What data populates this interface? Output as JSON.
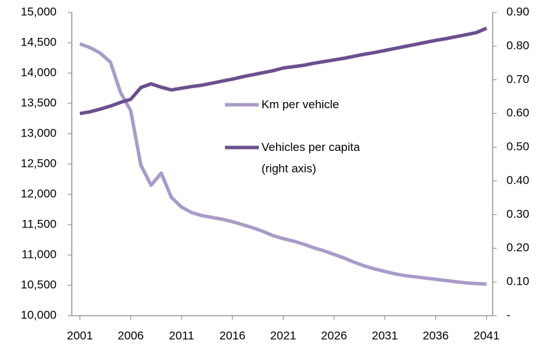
{
  "chart_data": {
    "type": "line",
    "x": [
      2001,
      2002,
      2003,
      2004,
      2005,
      2006,
      2007,
      2008,
      2009,
      2010,
      2011,
      2012,
      2013,
      2014,
      2015,
      2016,
      2017,
      2018,
      2019,
      2020,
      2021,
      2022,
      2023,
      2024,
      2025,
      2026,
      2027,
      2028,
      2029,
      2030,
      2031,
      2032,
      2033,
      2034,
      2035,
      2036,
      2037,
      2038,
      2039,
      2040,
      2041
    ],
    "series": [
      {
        "name": "Km per vehicle",
        "color": "#a99bc8",
        "values": [
          14480,
          14420,
          14330,
          14180,
          13680,
          13380,
          12480,
          12150,
          12350,
          11950,
          11790,
          11700,
          11650,
          11620,
          11590,
          11550,
          11500,
          11450,
          11390,
          11320,
          11270,
          11230,
          11180,
          11120,
          11070,
          11010,
          10950,
          10880,
          10820,
          10770,
          10730,
          10690,
          10660,
          10640,
          10620,
          10600,
          10580,
          10560,
          10540,
          10530,
          10520
        ]
      },
      {
        "name": "Vehicles per capita (right axis)",
        "color": "#6a4f8e",
        "axis": "y2",
        "values": [
          0.6,
          0.605,
          0.613,
          0.622,
          0.633,
          0.642,
          0.677,
          0.688,
          0.678,
          0.67,
          0.675,
          0.68,
          0.684,
          0.69,
          0.696,
          0.702,
          0.709,
          0.715,
          0.721,
          0.727,
          0.735,
          0.739,
          0.743,
          0.749,
          0.754,
          0.759,
          0.764,
          0.77,
          0.776,
          0.781,
          0.787,
          0.793,
          0.799,
          0.805,
          0.811,
          0.817,
          0.822,
          0.828,
          0.834,
          0.84,
          0.853
        ]
      }
    ],
    "xlim": [
      2000.2,
      2041.6
    ],
    "xticks": [
      2001,
      2006,
      2011,
      2016,
      2021,
      2026,
      2031,
      2036,
      2041
    ],
    "ylim": [
      10000,
      15000
    ],
    "yticks": [
      {
        "value": 10000,
        "label": "10,000"
      },
      {
        "value": 10500,
        "label": "10,500"
      },
      {
        "value": 11000,
        "label": "11,000"
      },
      {
        "value": 11500,
        "label": "11,500"
      },
      {
        "value": 12000,
        "label": "12,000"
      },
      {
        "value": 12500,
        "label": "12,500"
      },
      {
        "value": 13000,
        "label": "13,000"
      },
      {
        "value": 13500,
        "label": "13,500"
      },
      {
        "value": 14000,
        "label": "14,000"
      },
      {
        "value": 14500,
        "label": "14,500"
      },
      {
        "value": 15000,
        "label": "15,000"
      }
    ],
    "y2lim": [
      0,
      0.9
    ],
    "y2ticks": [
      {
        "value": 0,
        "label": "-"
      },
      {
        "value": 0.1,
        "label": "0.10"
      },
      {
        "value": 0.2,
        "label": "0.20"
      },
      {
        "value": 0.3,
        "label": "0.30"
      },
      {
        "value": 0.4,
        "label": "0.40"
      },
      {
        "value": 0.5,
        "label": "0.50"
      },
      {
        "value": 0.6,
        "label": "0.60"
      },
      {
        "value": 0.7,
        "label": "0.70"
      },
      {
        "value": 0.8,
        "label": "0.80"
      },
      {
        "value": 0.9,
        "label": "0.90"
      }
    ],
    "grid": false
  }
}
